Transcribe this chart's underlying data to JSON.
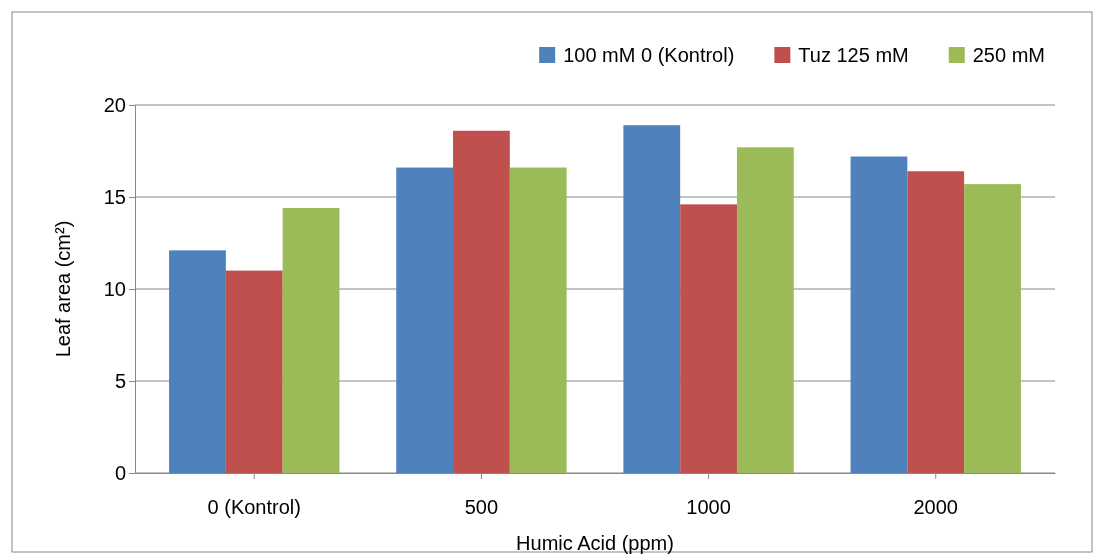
{
  "chart_data": {
    "type": "bar",
    "xlabel": "Humic Acid (ppm)",
    "ylabel": "Leaf area (cm²)",
    "categories": [
      "0 (Kontrol)",
      "500",
      "1000",
      "2000"
    ],
    "series": [
      {
        "name": "100 mM 0 (Kontrol)",
        "color": "#4f81bd",
        "values": [
          12.1,
          16.6,
          18.9,
          17.2
        ]
      },
      {
        "name": "Tuz 125 mM",
        "color": "#c0504d",
        "values": [
          11.0,
          18.6,
          14.6,
          16.4
        ]
      },
      {
        "name": "250 mM",
        "color": "#9bbb59",
        "values": [
          14.4,
          16.6,
          17.7,
          15.7
        ]
      }
    ],
    "ylim": [
      0,
      20
    ],
    "yticks": [
      0,
      5,
      10,
      15,
      20
    ],
    "grid": "y",
    "legend": "top right"
  }
}
